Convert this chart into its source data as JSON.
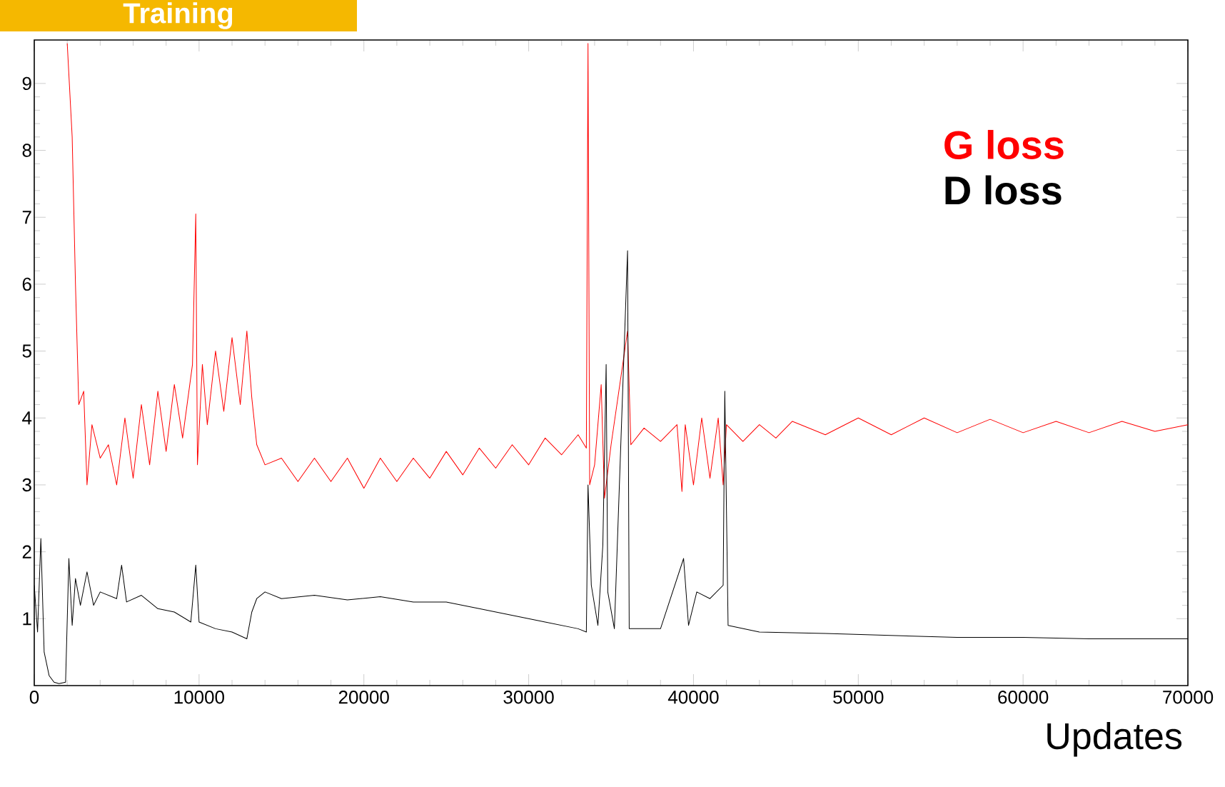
{
  "chart_data": {
    "type": "line",
    "title": "Training",
    "xlabel": "Updates",
    "xlim": [
      0,
      70000
    ],
    "ylim": [
      0,
      9.65
    ],
    "xticks": [
      0,
      10000,
      20000,
      30000,
      40000,
      50000,
      60000,
      70000
    ],
    "yticks": [
      1,
      2,
      3,
      4,
      5,
      6,
      7,
      8,
      9
    ],
    "grid": false,
    "legend": "top right",
    "marker": "none",
    "line_style": "solid",
    "series": [
      {
        "name": "G loss",
        "color": "#ff0000",
        "x": [
          2000,
          2300,
          2500,
          2700,
          3000,
          3200,
          3500,
          4000,
          4500,
          5000,
          5500,
          6000,
          6500,
          7000,
          7500,
          8000,
          8500,
          9000,
          9600,
          9800,
          9900,
          10200,
          10500,
          11000,
          11500,
          12000,
          12500,
          12900,
          13200,
          13500,
          14000,
          15000,
          16000,
          17000,
          18000,
          19000,
          20000,
          21000,
          22000,
          23000,
          24000,
          25000,
          26000,
          27000,
          28000,
          29000,
          30000,
          31000,
          32000,
          33000,
          33500,
          33600,
          33700,
          34000,
          34400,
          34600,
          35000,
          36000,
          36200,
          37000,
          38000,
          39000,
          39300,
          39500,
          40000,
          40500,
          41000,
          41500,
          41800,
          42000,
          43000,
          44000,
          45000,
          46000,
          48000,
          50000,
          52000,
          54000,
          56000,
          58000,
          60000,
          62000,
          64000,
          66000,
          68000,
          70000
        ],
        "values": [
          9.6,
          8.2,
          6,
          4.2,
          4.4,
          3.0,
          3.9,
          3.4,
          3.6,
          3.0,
          4.0,
          3.1,
          4.2,
          3.3,
          4.4,
          3.5,
          4.5,
          3.7,
          4.8,
          7.05,
          3.3,
          4.8,
          3.9,
          5.0,
          4.1,
          5.2,
          4.2,
          5.3,
          4.3,
          3.6,
          3.3,
          3.4,
          3.05,
          3.4,
          3.05,
          3.4,
          2.95,
          3.4,
          3.05,
          3.4,
          3.1,
          3.5,
          3.15,
          3.55,
          3.25,
          3.6,
          3.3,
          3.7,
          3.45,
          3.75,
          3.55,
          9.6,
          3.0,
          3.3,
          4.5,
          2.8,
          3.6,
          5.3,
          3.6,
          3.85,
          3.65,
          3.9,
          2.9,
          3.9,
          3.0,
          4.0,
          3.1,
          4.0,
          3.0,
          3.9,
          3.65,
          3.9,
          3.7,
          3.95,
          3.75,
          4.0,
          3.75,
          4.0,
          3.78,
          3.98,
          3.78,
          3.95,
          3.78,
          3.95,
          3.8,
          3.9
        ]
      },
      {
        "name": "D loss",
        "color": "#000000",
        "x": [
          0,
          200,
          400,
          600,
          900,
          1200,
          1500,
          1900,
          2100,
          2300,
          2500,
          2800,
          3200,
          3600,
          4000,
          5000,
          5300,
          5600,
          6500,
          7500,
          8500,
          9500,
          9800,
          10000,
          11000,
          12000,
          12900,
          13200,
          13500,
          14000,
          15000,
          17000,
          19000,
          21000,
          23000,
          25000,
          27000,
          29000,
          31000,
          33000,
          33500,
          33600,
          33800,
          34200,
          34500,
          34700,
          34800,
          35200,
          36000,
          36100,
          38000,
          39400,
          39700,
          40200,
          41000,
          41800,
          41900,
          42100,
          44000,
          48000,
          52000,
          56000,
          60000,
          64000,
          70000
        ],
        "values": [
          1.5,
          0.8,
          2.2,
          0.5,
          0.15,
          0.05,
          0.03,
          0.05,
          1.9,
          0.9,
          1.6,
          1.2,
          1.7,
          1.2,
          1.4,
          1.3,
          1.8,
          1.25,
          1.35,
          1.15,
          1.1,
          0.95,
          1.8,
          0.95,
          0.85,
          0.8,
          0.7,
          1.1,
          1.3,
          1.4,
          1.3,
          1.35,
          1.28,
          1.33,
          1.25,
          1.25,
          1.15,
          1.05,
          0.95,
          0.85,
          0.8,
          3.0,
          1.5,
          0.9,
          2.1,
          4.8,
          1.4,
          0.85,
          6.5,
          0.85,
          0.85,
          1.9,
          0.9,
          1.4,
          1.3,
          1.5,
          4.4,
          0.9,
          0.8,
          0.78,
          0.75,
          0.72,
          0.72,
          0.7,
          0.7
        ]
      }
    ]
  }
}
